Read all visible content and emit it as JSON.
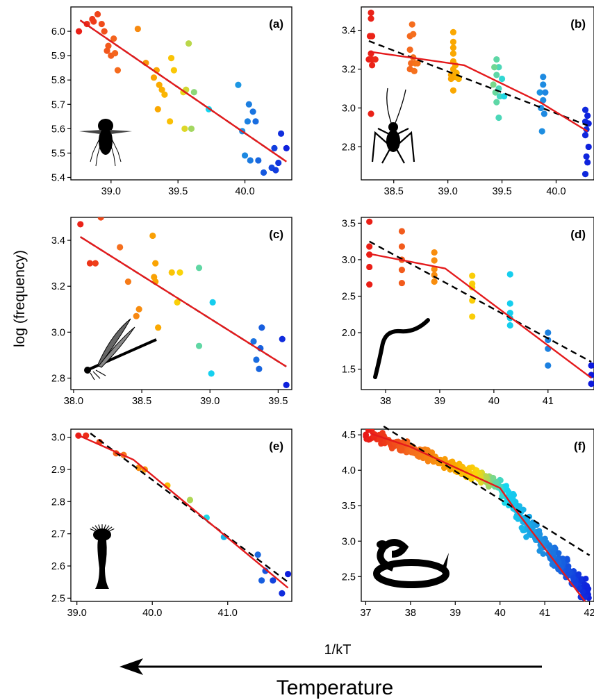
{
  "figure": {
    "ylabel": "log (frequency)",
    "xlabel": "1/kT",
    "arrow_label": "Temperature",
    "arrow_direction": "left"
  },
  "chart_data": [
    {
      "panel": "(a)",
      "type": "scatter",
      "xlim": [
        38.7,
        40.35
      ],
      "ylim": [
        5.39,
        6.1
      ],
      "xticks": [
        "39.0",
        "39.5",
        "40.0"
      ],
      "xtick_values": [
        39.0,
        39.5,
        40.0
      ],
      "yticks": [
        "5.4",
        "5.5",
        "5.6",
        "5.7",
        "5.8",
        "5.9",
        "6.0"
      ],
      "ytick_values": [
        5.4,
        5.5,
        5.6,
        5.7,
        5.8,
        5.9,
        6.0
      ],
      "silhouette": "fly",
      "points": [
        [
          38.76,
          6.0
        ],
        [
          38.82,
          6.03
        ],
        [
          38.86,
          6.05
        ],
        [
          38.87,
          6.04
        ],
        [
          38.9,
          6.07
        ],
        [
          38.93,
          6.03
        ],
        [
          38.95,
          6.0
        ],
        [
          38.97,
          5.92
        ],
        [
          38.98,
          5.94
        ],
        [
          39.0,
          5.9
        ],
        [
          39.02,
          5.97
        ],
        [
          39.03,
          5.91
        ],
        [
          39.05,
          5.84
        ],
        [
          39.2,
          6.01
        ],
        [
          39.26,
          5.87
        ],
        [
          39.32,
          5.81
        ],
        [
          39.34,
          5.84
        ],
        [
          39.36,
          5.78
        ],
        [
          39.38,
          5.76
        ],
        [
          39.4,
          5.74
        ],
        [
          39.35,
          5.68
        ],
        [
          39.45,
          5.89
        ],
        [
          39.47,
          5.84
        ],
        [
          39.54,
          5.75
        ],
        [
          39.56,
          5.76
        ],
        [
          39.58,
          5.95
        ],
        [
          39.6,
          5.6
        ],
        [
          39.62,
          5.75
        ],
        [
          39.55,
          5.6
        ],
        [
          39.44,
          5.63
        ],
        [
          39.73,
          5.68
        ],
        [
          39.95,
          5.78
        ],
        [
          39.98,
          5.59
        ],
        [
          40.0,
          5.49
        ],
        [
          40.02,
          5.63
        ],
        [
          40.03,
          5.7
        ],
        [
          40.04,
          5.47
        ],
        [
          40.06,
          5.67
        ],
        [
          40.08,
          5.63
        ],
        [
          40.1,
          5.47
        ],
        [
          40.14,
          5.42
        ],
        [
          40.2,
          5.44
        ],
        [
          40.22,
          5.52
        ],
        [
          40.23,
          5.43
        ],
        [
          40.25,
          5.46
        ],
        [
          40.27,
          5.58
        ],
        [
          40.31,
          5.52
        ]
      ],
      "lines": [
        {
          "style": "dashed",
          "color": "#000000",
          "points": [
            [
              38.77,
              6.045
            ],
            [
              40.31,
              5.465
            ]
          ]
        },
        {
          "style": "solid",
          "color": "#e41a1c",
          "points": [
            [
              38.77,
              6.045
            ],
            [
              40.31,
              5.465
            ]
          ]
        }
      ]
    },
    {
      "panel": "(b)",
      "type": "scatter",
      "xlim": [
        38.2,
        40.35
      ],
      "ylim": [
        2.63,
        3.52
      ],
      "xticks": [
        "38.5",
        "39.0",
        "39.5",
        "40.0"
      ],
      "xtick_values": [
        38.5,
        39.0,
        39.5,
        40.0
      ],
      "yticks": [
        "2.8",
        "3.0",
        "3.2",
        "3.4"
      ],
      "ytick_values": [
        2.8,
        3.0,
        3.2,
        3.4
      ],
      "silhouette": "cricket",
      "points": [
        [
          38.29,
          3.49
        ],
        [
          38.29,
          3.46
        ],
        [
          38.28,
          3.37
        ],
        [
          38.3,
          3.37
        ],
        [
          38.29,
          3.28
        ],
        [
          38.27,
          3.25
        ],
        [
          38.3,
          3.25
        ],
        [
          38.33,
          3.25
        ],
        [
          38.3,
          3.22
        ],
        [
          38.29,
          2.97
        ],
        [
          38.65,
          3.37
        ],
        [
          38.67,
          3.43
        ],
        [
          38.68,
          3.38
        ],
        [
          38.65,
          3.3
        ],
        [
          38.68,
          3.26
        ],
        [
          38.66,
          3.23
        ],
        [
          38.7,
          3.23
        ],
        [
          38.72,
          3.23
        ],
        [
          38.65,
          3.2
        ],
        [
          38.69,
          3.19
        ],
        [
          39.05,
          3.39
        ],
        [
          39.05,
          3.34
        ],
        [
          39.05,
          3.31
        ],
        [
          39.05,
          3.28
        ],
        [
          39.05,
          3.24
        ],
        [
          39.07,
          3.22
        ],
        [
          39.05,
          3.2
        ],
        [
          39.08,
          3.18
        ],
        [
          39.03,
          3.17
        ],
        [
          39.07,
          3.16
        ],
        [
          39.03,
          3.15
        ],
        [
          39.1,
          3.15
        ],
        [
          39.05,
          3.09
        ],
        [
          39.45,
          3.25
        ],
        [
          39.47,
          3.21
        ],
        [
          39.43,
          3.21
        ],
        [
          39.45,
          3.17
        ],
        [
          39.5,
          3.15
        ],
        [
          39.42,
          3.12
        ],
        [
          39.47,
          3.1
        ],
        [
          39.44,
          3.08
        ],
        [
          39.48,
          3.06
        ],
        [
          39.52,
          3.06
        ],
        [
          39.45,
          3.03
        ],
        [
          39.47,
          2.95
        ],
        [
          39.88,
          3.16
        ],
        [
          39.88,
          3.12
        ],
        [
          39.85,
          3.08
        ],
        [
          39.9,
          3.08
        ],
        [
          39.88,
          3.04
        ],
        [
          39.86,
          3.0
        ],
        [
          39.89,
          2.97
        ],
        [
          39.87,
          2.88
        ],
        [
          40.27,
          2.99
        ],
        [
          40.29,
          2.96
        ],
        [
          40.27,
          2.93
        ],
        [
          40.3,
          2.92
        ],
        [
          40.28,
          2.89
        ],
        [
          40.27,
          2.86
        ],
        [
          40.3,
          2.8
        ],
        [
          40.28,
          2.75
        ],
        [
          40.29,
          2.72
        ],
        [
          40.27,
          2.66
        ]
      ],
      "lines": [
        {
          "style": "dashed",
          "color": "#000000",
          "points": [
            [
              38.27,
              3.345
            ],
            [
              40.29,
              2.91
            ]
          ]
        },
        {
          "style": "solid",
          "color": "#e41a1c",
          "points": [
            [
              38.27,
              3.29
            ],
            [
              39.15,
              3.22
            ],
            [
              39.85,
              3.03
            ],
            [
              40.29,
              2.88
            ]
          ]
        }
      ]
    },
    {
      "panel": "(c)",
      "type": "scatter",
      "xlim": [
        37.98,
        39.6
      ],
      "ylim": [
        2.75,
        3.5
      ],
      "xticks": [
        "38.0",
        "38.5",
        "39.0",
        "39.5"
      ],
      "xtick_values": [
        38.0,
        38.5,
        39.0,
        39.5
      ],
      "yticks": [
        "2.8",
        "3.0",
        "3.2",
        "3.4"
      ],
      "ytick_values": [
        2.8,
        3.0,
        3.2,
        3.4
      ],
      "silhouette": "damselfly",
      "points": [
        [
          38.05,
          3.47
        ],
        [
          38.2,
          3.5
        ],
        [
          38.12,
          3.3
        ],
        [
          38.16,
          3.3
        ],
        [
          38.34,
          3.37
        ],
        [
          38.4,
          3.22
        ],
        [
          38.58,
          3.42
        ],
        [
          38.6,
          3.3
        ],
        [
          38.59,
          3.24
        ],
        [
          38.6,
          3.22
        ],
        [
          38.72,
          3.26
        ],
        [
          38.78,
          3.26
        ],
        [
          38.92,
          3.28
        ],
        [
          38.48,
          3.1
        ],
        [
          38.46,
          3.07
        ],
        [
          38.62,
          3.02
        ],
        [
          38.76,
          3.13
        ],
        [
          39.02,
          3.13
        ],
        [
          38.92,
          2.94
        ],
        [
          39.01,
          2.82
        ],
        [
          39.32,
          2.96
        ],
        [
          39.38,
          3.02
        ],
        [
          39.37,
          2.93
        ],
        [
          39.34,
          2.88
        ],
        [
          39.36,
          2.84
        ],
        [
          39.53,
          2.97
        ],
        [
          39.56,
          2.77
        ]
      ],
      "lines": [
        {
          "style": "dashed",
          "color": "#000000",
          "points": [
            [
              38.05,
              3.415
            ],
            [
              39.56,
              2.85
            ]
          ]
        },
        {
          "style": "solid",
          "color": "#e41a1c",
          "points": [
            [
              38.05,
              3.415
            ],
            [
              39.56,
              2.85
            ]
          ]
        }
      ]
    },
    {
      "panel": "(d)",
      "type": "scatter",
      "xlim": [
        37.55,
        41.85
      ],
      "ylim": [
        1.22,
        3.58
      ],
      "xticks": [
        "38",
        "39",
        "40",
        "41"
      ],
      "xtick_values": [
        38,
        39,
        40,
        41
      ],
      "yticks": [
        "1.5",
        "2.0",
        "2.5",
        "3.0",
        "3.5"
      ],
      "ytick_values": [
        1.5,
        2.0,
        2.5,
        3.0,
        3.5
      ],
      "silhouette": "worm",
      "points": [
        [
          37.7,
          3.52
        ],
        [
          37.7,
          3.18
        ],
        [
          37.7,
          3.07
        ],
        [
          37.7,
          2.9
        ],
        [
          37.7,
          2.66
        ],
        [
          38.3,
          3.39
        ],
        [
          38.3,
          3.18
        ],
        [
          38.3,
          3.0
        ],
        [
          38.3,
          2.86
        ],
        [
          38.3,
          2.68
        ],
        [
          38.9,
          3.1
        ],
        [
          38.9,
          2.99
        ],
        [
          38.9,
          2.87
        ],
        [
          38.9,
          2.79
        ],
        [
          38.9,
          2.7
        ],
        [
          39.6,
          2.78
        ],
        [
          39.6,
          2.67
        ],
        [
          39.6,
          2.62
        ],
        [
          39.6,
          2.44
        ],
        [
          39.6,
          2.22
        ],
        [
          40.3,
          2.8
        ],
        [
          40.3,
          2.4
        ],
        [
          40.3,
          2.27
        ],
        [
          40.3,
          2.2
        ],
        [
          40.3,
          2.1
        ],
        [
          41.0,
          2.0
        ],
        [
          41.0,
          1.9
        ],
        [
          41.0,
          1.78
        ],
        [
          41.0,
          1.55
        ],
        [
          41.8,
          1.55
        ],
        [
          41.8,
          1.42
        ],
        [
          41.8,
          1.3
        ]
      ],
      "lines": [
        {
          "style": "dashed",
          "color": "#000000",
          "points": [
            [
              37.7,
              3.25
            ],
            [
              41.8,
              1.6
            ]
          ]
        },
        {
          "style": "solid",
          "color": "#e41a1c",
          "points": [
            [
              37.7,
              3.08
            ],
            [
              39.1,
              2.88
            ],
            [
              41.8,
              1.38
            ]
          ]
        }
      ]
    },
    {
      "panel": "(e)",
      "type": "scatter",
      "xlim": [
        38.92,
        41.85
      ],
      "ylim": [
        2.49,
        3.025
      ],
      "xticks": [
        "39.0",
        "40.0",
        "41.0"
      ],
      "xtick_values": [
        39.0,
        40.0,
        41.0
      ],
      "yticks": [
        "2.5",
        "2.6",
        "2.7",
        "2.8",
        "2.9",
        "3.0"
      ],
      "ytick_values": [
        2.5,
        2.6,
        2.7,
        2.8,
        2.9,
        3.0
      ],
      "silhouette": "hydra",
      "points": [
        [
          39.02,
          3.005
        ],
        [
          39.12,
          3.005
        ],
        [
          39.3,
          2.985
        ],
        [
          39.52,
          2.95
        ],
        [
          39.62,
          2.945
        ],
        [
          39.82,
          2.905
        ],
        [
          39.9,
          2.9
        ],
        [
          40.2,
          2.85
        ],
        [
          40.5,
          2.805
        ],
        [
          40.72,
          2.75
        ],
        [
          40.95,
          2.69
        ],
        [
          41.4,
          2.635
        ],
        [
          41.45,
          2.555
        ],
        [
          41.5,
          2.585
        ],
        [
          41.6,
          2.555
        ],
        [
          41.72,
          2.515
        ],
        [
          41.8,
          2.575
        ]
      ],
      "lines": [
        {
          "style": "dashed",
          "color": "#000000",
          "points": [
            [
              39.18,
              3.012
            ],
            [
              41.8,
              2.55
            ]
          ]
        },
        {
          "style": "solid",
          "color": "#e41a1c",
          "points": [
            [
              39.0,
              3.008
            ],
            [
              39.75,
              2.93
            ],
            [
              41.8,
              2.532
            ]
          ]
        }
      ]
    },
    {
      "panel": "(f)",
      "type": "scatter",
      "xlim": [
        36.9,
        42.1
      ],
      "ylim": [
        2.15,
        4.58
      ],
      "xticks": [
        "37",
        "38",
        "39",
        "40",
        "41",
        "42"
      ],
      "xtick_values": [
        37,
        38,
        39,
        40,
        41,
        42
      ],
      "yticks": [
        "2.5",
        "3.0",
        "3.5",
        "4.0",
        "4.5"
      ],
      "ytick_values": [
        2.5,
        3.0,
        3.5,
        4.0,
        4.5
      ],
      "silhouette": "snake",
      "dense_band": [
        [
          37.0,
          4.51
        ],
        [
          37.5,
          4.42
        ],
        [
          38.0,
          4.3
        ],
        [
          38.5,
          4.17
        ],
        [
          39.0,
          4.03
        ],
        [
          39.5,
          3.93
        ],
        [
          40.0,
          3.78
        ],
        [
          40.3,
          3.5
        ],
        [
          40.6,
          3.22
        ],
        [
          41.0,
          2.93
        ],
        [
          41.4,
          2.63
        ],
        [
          41.8,
          2.38
        ],
        [
          42.0,
          2.26
        ]
      ],
      "lines": [
        {
          "style": "dashed",
          "color": "#000000",
          "points": [
            [
              37.4,
              4.62
            ],
            [
              42.0,
              2.8
            ]
          ]
        },
        {
          "style": "solid",
          "color": "#e41a1c",
          "points": [
            [
              37.1,
              4.52
            ],
            [
              38.0,
              4.33
            ],
            [
              40.0,
              3.75
            ],
            [
              40.3,
              3.48
            ],
            [
              41.9,
              2.15
            ]
          ]
        }
      ]
    }
  ]
}
